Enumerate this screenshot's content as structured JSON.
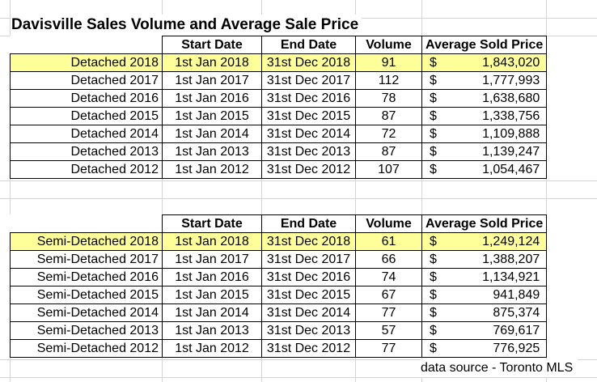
{
  "title": "Davisville Sales Volume and Average Sale Price",
  "headers": {
    "start": "Start Date",
    "end": "End Date",
    "volume": "Volume",
    "price": "Average Sold Price"
  },
  "currency_symbol": "$",
  "highlight_color": "#ffff99",
  "detached": [
    {
      "label": "Detached 2018",
      "start": "1st Jan 2018",
      "end": "31st Dec 2018",
      "volume": "91",
      "price": "1,843,020"
    },
    {
      "label": "Detached 2017",
      "start": "1st Jan 2017",
      "end": "31st Dec 2017",
      "volume": "112",
      "price": "1,777,993"
    },
    {
      "label": "Detached 2016",
      "start": "1st Jan 2016",
      "end": "31st Dec 2016",
      "volume": "78",
      "price": "1,638,680"
    },
    {
      "label": "Detached 2015",
      "start": "1st Jan 2015",
      "end": "31st Dec 2015",
      "volume": "87",
      "price": "1,338,756"
    },
    {
      "label": "Detached 2014",
      "start": "1st Jan 2014",
      "end": "31st Dec 2014",
      "volume": "72",
      "price": "1,109,888"
    },
    {
      "label": "Detached 2013",
      "start": "1st Jan 2013",
      "end": "31st Dec 2013",
      "volume": "87",
      "price": "1,139,247"
    },
    {
      "label": "Detached 2012",
      "start": "1st Jan 2012",
      "end": "31st Dec 2012",
      "volume": "107",
      "price": "1,054,467"
    }
  ],
  "semi": [
    {
      "label": "Semi-Detached 2018",
      "start": "1st Jan 2018",
      "end": "31st Dec 2018",
      "volume": "61",
      "price": "1,249,124"
    },
    {
      "label": "Semi-Detached 2017",
      "start": "1st Jan 2017",
      "end": "31st Dec 2017",
      "volume": "66",
      "price": "1,388,207"
    },
    {
      "label": "Semi-Detached 2016",
      "start": "1st Jan 2016",
      "end": "31st Dec 2016",
      "volume": "74",
      "price": "1,134,921"
    },
    {
      "label": "Semi-Detached 2015",
      "start": "1st Jan 2015",
      "end": "31st Dec 2015",
      "volume": "67",
      "price": "941,849"
    },
    {
      "label": "Semi-Detached 2014",
      "start": "1st Jan 2014",
      "end": "31st Dec 2014",
      "volume": "77",
      "price": "875,374"
    },
    {
      "label": "Semi-Detached 2013",
      "start": "1st Jan 2013",
      "end": "31st Dec 2013",
      "volume": "57",
      "price": "769,617"
    },
    {
      "label": "Semi-Detached 2012",
      "start": "1st Jan 2012",
      "end": "31st Dec 2012",
      "volume": "77",
      "price": "776,925"
    }
  ],
  "source": "data source  - Toronto MLS"
}
